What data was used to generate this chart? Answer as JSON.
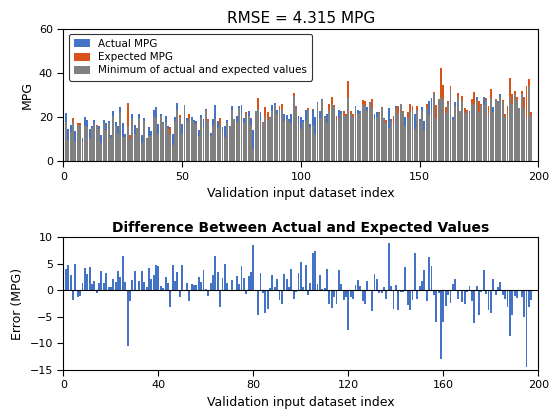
{
  "title1": "RMSE = 4.315 MPG",
  "title2": "Difference Between Actual and Expected Values",
  "xlabel": "Validation input dataset index",
  "ylabel1": "MPG",
  "ylabel2": "Error (MPG)",
  "n": 197,
  "ylim1": [
    0,
    60
  ],
  "ylim2": [
    -15,
    10
  ],
  "yticks1": [
    0,
    20,
    40,
    60
  ],
  "yticks2": [
    -15,
    -10,
    -5,
    0,
    5,
    10
  ],
  "xlim1": [
    0,
    200
  ],
  "xlim2": [
    0,
    200
  ],
  "xticks1": [
    0,
    50,
    100,
    150,
    200
  ],
  "xticks2": [
    0,
    40,
    80,
    120,
    160,
    200
  ],
  "color_actual": "#4472C4",
  "color_expected": "#D95319",
  "color_min": "#808080",
  "color_error": "#4472C4",
  "color_line": "#000000",
  "legend_labels": [
    "Actual MPG",
    "Expected MPG",
    "Minimum of actual and expected values"
  ],
  "background_color": "#ffffff",
  "figsize": [
    5.6,
    4.2
  ],
  "dpi": 100
}
